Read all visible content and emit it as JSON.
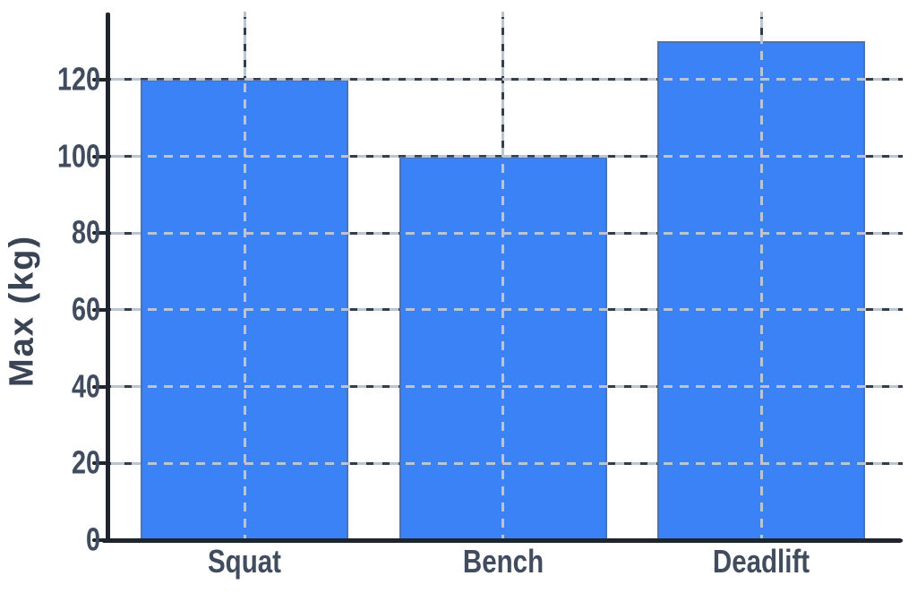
{
  "chart_data": {
    "type": "bar",
    "categories": [
      "Squat",
      "Bench",
      "Deadlift"
    ],
    "values": [
      120,
      100,
      130
    ],
    "title": "",
    "xlabel": "",
    "ylabel": "Max (kg)",
    "yticks": [
      0,
      20,
      40,
      60,
      80,
      100,
      120
    ],
    "ylim": [
      0,
      137
    ],
    "grid": "dashed horizontal and vertical, dark dashes under bars with light dashes overlaid",
    "legend": false,
    "bar_color": "#3b82f6",
    "bar_border_color": "rgba(96,96,96,0.45)",
    "axis_color": "#20242c",
    "tick_label_color": "#414c5e",
    "grid_dark_color": "#343d4a",
    "grid_light_color": "#bcc4cf"
  }
}
